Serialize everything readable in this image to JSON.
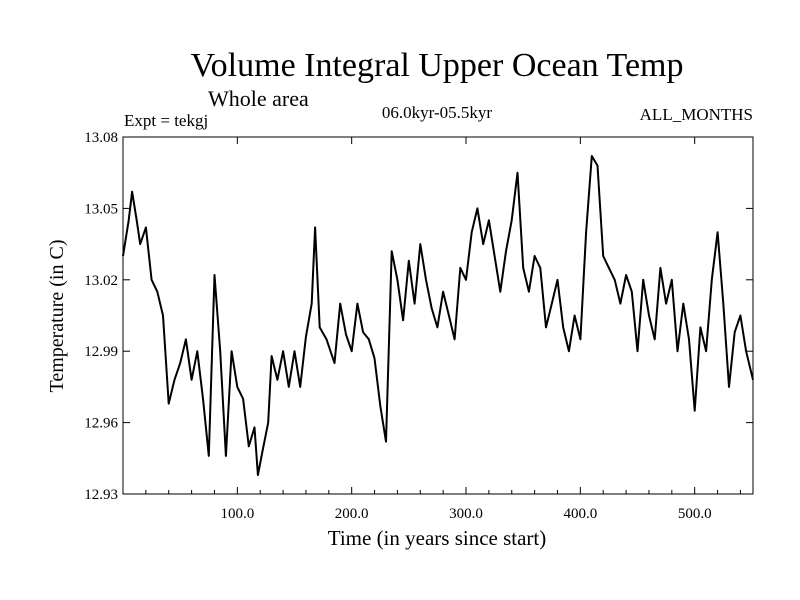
{
  "chart_data": {
    "type": "line",
    "title": "Volume Integral Upper Ocean Temp",
    "subtitle": "Whole area",
    "experiment_label": "Expt = tekgj",
    "period_label": "06.0kyr-05.5kyr",
    "months_label": "ALL_MONTHS",
    "xlabel": "Time (in years since start)",
    "ylabel": "Temperature (in C)",
    "xlim": [
      0,
      551
    ],
    "ylim": [
      12.93,
      13.08
    ],
    "x_ticks": [
      100,
      200,
      300,
      400,
      500
    ],
    "x_tick_labels": [
      "100.0",
      "200.0",
      "300.0",
      "400.0",
      "500.0"
    ],
    "y_ticks": [
      12.93,
      12.96,
      12.99,
      13.02,
      13.05,
      13.08
    ],
    "y_tick_labels": [
      "12.93",
      "12.96",
      "12.99",
      "13.02",
      "13.05",
      "13.08"
    ],
    "grid": false,
    "line_color": "#000000",
    "series": [
      {
        "name": "tekgj",
        "x": [
          0,
          5,
          8,
          12,
          15,
          20,
          25,
          30,
          35,
          40,
          45,
          50,
          55,
          60,
          65,
          70,
          75,
          80,
          85,
          90,
          95,
          100,
          105,
          110,
          115,
          118,
          122,
          127,
          130,
          135,
          140,
          145,
          150,
          155,
          160,
          165,
          168,
          172,
          178,
          185,
          190,
          195,
          200,
          205,
          210,
          215,
          220,
          225,
          230,
          235,
          240,
          245,
          250,
          255,
          260,
          265,
          270,
          275,
          280,
          285,
          290,
          295,
          300,
          305,
          310,
          315,
          320,
          325,
          330,
          335,
          340,
          345,
          350,
          355,
          360,
          365,
          370,
          375,
          380,
          385,
          390,
          395,
          400,
          405,
          410,
          415,
          420,
          425,
          430,
          435,
          440,
          445,
          450,
          455,
          460,
          465,
          470,
          475,
          480,
          485,
          490,
          495,
          500,
          505,
          510,
          515,
          520,
          525,
          530,
          535,
          540,
          545,
          551
        ],
        "y": [
          13.03,
          13.045,
          13.057,
          13.045,
          13.035,
          13.042,
          13.02,
          13.015,
          13.005,
          12.968,
          12.978,
          12.985,
          12.995,
          12.978,
          12.99,
          12.97,
          12.946,
          13.022,
          12.99,
          12.946,
          12.99,
          12.975,
          12.97,
          12.95,
          12.958,
          12.938,
          12.948,
          12.96,
          12.988,
          12.978,
          12.99,
          12.975,
          12.99,
          12.975,
          12.996,
          13.01,
          13.042,
          13.0,
          12.995,
          12.985,
          13.01,
          12.997,
          12.99,
          13.01,
          12.998,
          12.995,
          12.987,
          12.967,
          12.952,
          13.032,
          13.02,
          13.003,
          13.028,
          13.01,
          13.035,
          13.02,
          13.008,
          13.0,
          13.015,
          13.005,
          12.995,
          13.025,
          13.02,
          13.04,
          13.05,
          13.035,
          13.045,
          13.03,
          13.015,
          13.032,
          13.045,
          13.065,
          13.025,
          13.015,
          13.03,
          13.025,
          13.0,
          13.01,
          13.02,
          13.0,
          12.99,
          13.005,
          12.995,
          13.04,
          13.072,
          13.068,
          13.03,
          13.025,
          13.02,
          13.01,
          13.022,
          13.015,
          12.99,
          13.02,
          13.005,
          12.995,
          13.025,
          13.01,
          13.02,
          12.99,
          13.01,
          12.995,
          12.965,
          13.0,
          12.99,
          13.02,
          13.04,
          13.01,
          12.975,
          12.998,
          13.005,
          12.99,
          12.978
        ]
      }
    ]
  }
}
